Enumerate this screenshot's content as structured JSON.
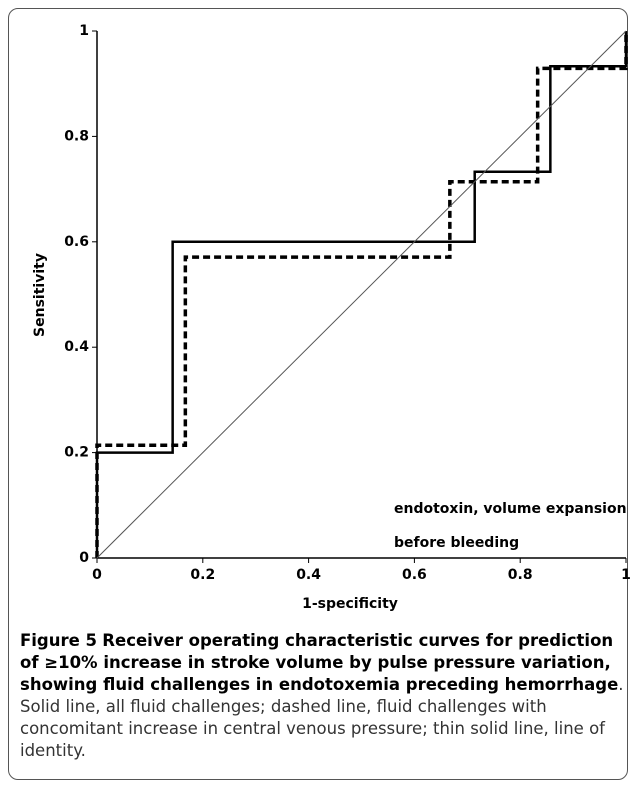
{
  "chart_data": {
    "type": "line",
    "xlabel": "1-specificity",
    "ylabel": "Sensitivity",
    "annotation": [
      "endotoxin, volume expansion",
      "before bleeding"
    ],
    "xlim": [
      0,
      1
    ],
    "ylim": [
      0,
      1
    ],
    "xticks": [
      0,
      0.2,
      0.4,
      0.6,
      0.8,
      1
    ],
    "yticks": [
      0,
      0.2,
      0.4,
      0.6,
      0.8,
      1
    ],
    "series": [
      {
        "color": "#000000",
        "linestyle": "solid",
        "x": [
          0,
          0,
          0.143,
          0.143,
          0.714,
          0.714,
          0.857,
          0.857,
          1,
          1
        ],
        "values": [
          0,
          0.2,
          0.2,
          0.6,
          0.6,
          0.733,
          0.733,
          0.933,
          0.933,
          1
        ]
      },
      {
        "color": "#000000",
        "linestyle": "dashed",
        "x": [
          0,
          0,
          0.167,
          0.167,
          0.667,
          0.667,
          0.833,
          0.833,
          1,
          1
        ],
        "values": [
          0,
          0.214,
          0.214,
          0.571,
          0.571,
          0.714,
          0.714,
          0.929,
          0.929,
          1
        ]
      },
      {
        "color": "#555555",
        "linestyle": "thin",
        "x": [
          0,
          1
        ],
        "values": [
          0,
          1
        ]
      }
    ]
  },
  "caption": {
    "label": "Figure 5",
    "title": "Receiver operating characteristic curves for prediction of ≥10% increase in stroke volume by pulse pressure variation, showing fluid challenges in endotoxemia preceding hemorrhage",
    "body": ". Solid line, all fluid challenges; dashed line, fluid challenges with concomitant increase in central venous pressure; thin solid line, line of identity."
  }
}
